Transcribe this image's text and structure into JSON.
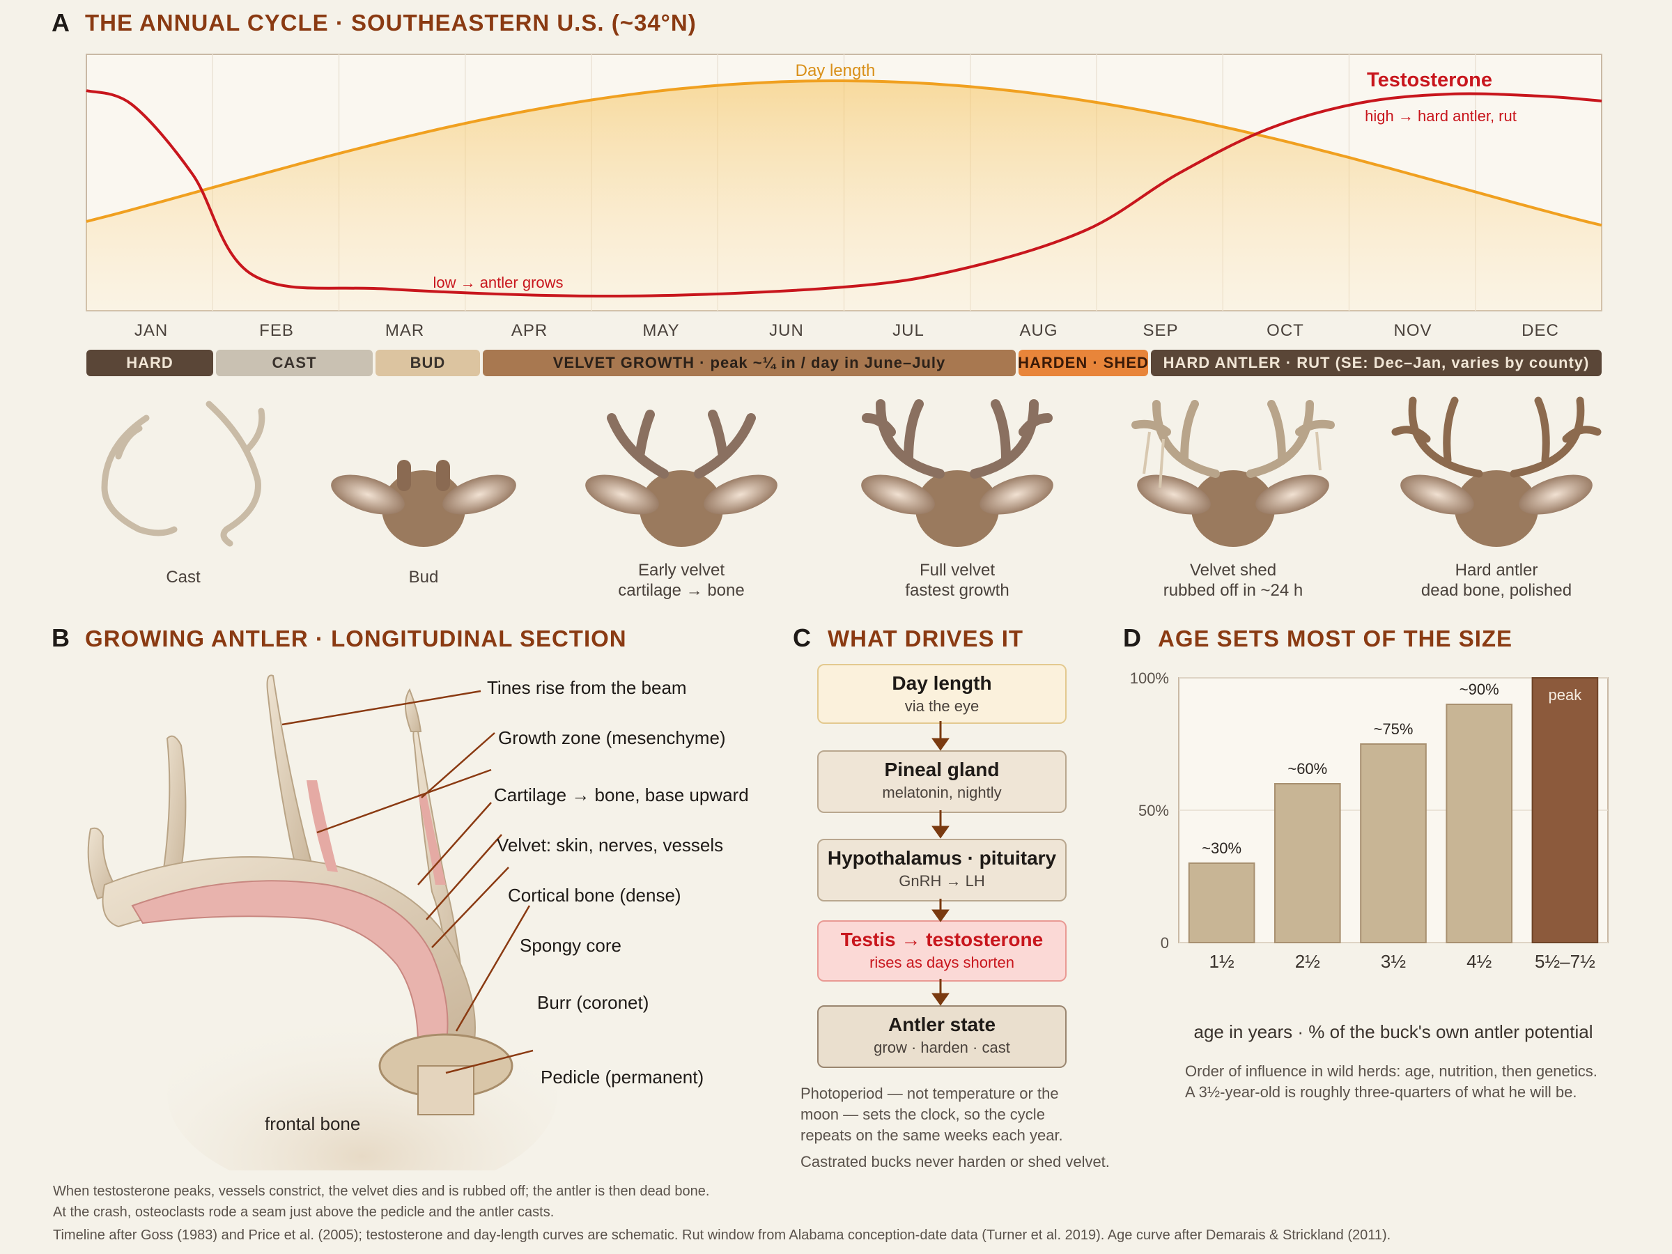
{
  "section_a": {
    "letter": "A",
    "title": "THE ANNUAL CYCLE · SOUTHEASTERN U.S. (~34°N)",
    "day_length_label": "Day length",
    "testosterone_label": "Testosterone",
    "testosterone_high_label": "high → hard antler, rut",
    "testosterone_low_label": "low → antler grows",
    "months": [
      "JAN",
      "FEB",
      "MAR",
      "APR",
      "MAY",
      "JUN",
      "JUL",
      "AUG",
      "SEP",
      "OCT",
      "NOV",
      "DEC"
    ],
    "phases": [
      {
        "label": "HARD",
        "bg": "#5a4637",
        "fg": "#f1e6d6"
      },
      {
        "label": "CAST",
        "bg": "#c9c1b2",
        "fg": "#3a332d"
      },
      {
        "label": "BUD",
        "bg": "#dcc4a0",
        "fg": "#3a332d"
      },
      {
        "label": "VELVET GROWTH · peak ~¼ in / day in June–July",
        "bg": "#a87850",
        "fg": "#2b2119"
      },
      {
        "label": "HARDEN · SHED",
        "bg": "#e8853a",
        "fg": "#3a1a08"
      },
      {
        "label": "HARD ANTLER · RUT (SE: Dec–Jan, varies by county)",
        "bg": "#5a4637",
        "fg": "#f1e6d6"
      }
    ],
    "stages": [
      {
        "line1": "Cast",
        "line2": ""
      },
      {
        "line1": "Bud",
        "line2": ""
      },
      {
        "line1": "Early velvet",
        "line2": "cartilage → bone"
      },
      {
        "line1": "Full velvet",
        "line2": "fastest growth"
      },
      {
        "line1": "Velvet shed",
        "line2": "rubbed off in ~24 h"
      },
      {
        "line1": "Hard antler",
        "line2": "dead bone, polished"
      }
    ],
    "colors": {
      "day_length": "#f0a020",
      "testosterone": "#c8161d"
    }
  },
  "section_b": {
    "letter": "B",
    "title": "GROWING ANTLER · LONGITUDINAL SECTION",
    "callouts": [
      "Tines rise from the beam",
      "Growth zone (mesenchyme)",
      "Cartilage → bone, base upward",
      "Velvet: skin, nerves, vessels",
      "Cortical bone (dense)",
      "Spongy core",
      "Burr (coronet)",
      "Pedicle (permanent)"
    ],
    "frontal_bone_label": "frontal bone"
  },
  "section_c": {
    "letter": "C",
    "title": "WHAT DRIVES IT",
    "steps": [
      {
        "title": "Day length",
        "sub": "via the eye"
      },
      {
        "title": "Pineal gland",
        "sub": "melatonin, nightly"
      },
      {
        "title": "Hypothalamus · pituitary",
        "sub": "GnRH → LH"
      },
      {
        "title": "Testis → testosterone",
        "sub": "rises as days shorten"
      },
      {
        "title": "Antler state",
        "sub": "grow · harden · cast"
      }
    ],
    "note_lines": [
      "Photoperiod — not temperature or the",
      "moon — sets the clock, so the cycle",
      "repeats on the same weeks each year."
    ],
    "note2": "Castrated bucks never harden or shed velvet."
  },
  "section_d": {
    "letter": "D",
    "title": "AGE SETS MOST OF THE SIZE",
    "note_lines": [
      "Order of influence in wild herds: age, nutrition, then genetics.",
      "A 3½-year-old is roughly three-quarters of what he will be."
    ]
  },
  "chart_data": {
    "type": "bar",
    "categories": [
      "1½",
      "2½",
      "3½",
      "4½",
      "5½–7½"
    ],
    "values": [
      30,
      60,
      75,
      90,
      100
    ],
    "data_labels": [
      "~30%",
      "~60%",
      "~75%",
      "~90%",
      "peak"
    ],
    "xlabel": "age in years · % of the buck's own antler potential",
    "ylabel": "",
    "ylim": [
      0,
      100
    ],
    "ytick_labels": [
      "0",
      "50%",
      "100%"
    ],
    "bar_color": "#c8b595",
    "peak_color": "#8c5a3c"
  },
  "footer": {
    "line1": "When testosterone peaks, vessels constrict, the velvet dies and is rubbed off; the antler is then  dead  bone.",
    "line2": "At the crash, osteoclasts rode a seam just above the pedicle and the antler casts.",
    "line3": "Timeline after Goss (1983) and Price et al. (2005); testosterone and day-length curves are schematic. Rut window from Alabama conception-date data (Turner et  al.  2019). Age curve after Demarais & Strickland (2011)."
  }
}
